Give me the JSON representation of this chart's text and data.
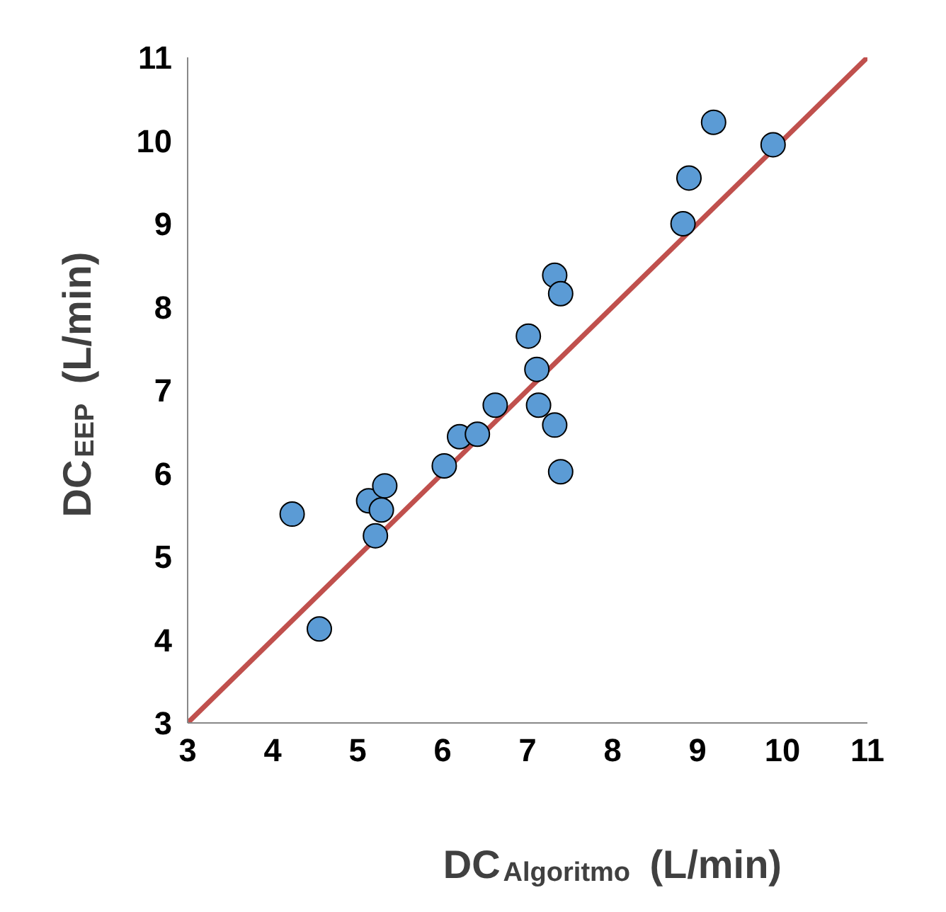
{
  "chart_data": {
    "type": "scatter",
    "xlabel": "DC$_{Algoritmo}$ (L/min)",
    "ylabel": "DC$_{EEP}$ (L/min)",
    "x": [
      4.23,
      4.55,
      5.13,
      5.32,
      5.28,
      5.21,
      6.02,
      6.2,
      6.41,
      6.62,
      7.01,
      7.11,
      7.13,
      7.32,
      7.39,
      7.32,
      7.39,
      8.83,
      8.9,
      9.19,
      9.89
    ],
    "series": [
      {
        "color": "#5b9bd5",
        "marker": "circle",
        "values": [
          5.51,
          4.13,
          5.67,
          5.85,
          5.56,
          5.25,
          6.09,
          6.44,
          6.47,
          6.82,
          7.65,
          7.25,
          6.82,
          8.38,
          8.16,
          6.58,
          6.02,
          9.0,
          9.55,
          10.22,
          9.95
        ]
      },
      {
        "type": "line",
        "color": "#c0504d",
        "marker": "none",
        "line_style": "solid",
        "x": [
          3,
          11
        ],
        "values": [
          3,
          11
        ]
      }
    ],
    "xlim": [
      3,
      11
    ],
    "ylim": [
      3,
      11
    ],
    "xticks": [
      3,
      4,
      5,
      6,
      7,
      8,
      9,
      10,
      11
    ],
    "yticks": [
      3,
      4,
      5,
      6,
      7,
      8,
      9,
      10,
      11
    ],
    "grid": false
  }
}
